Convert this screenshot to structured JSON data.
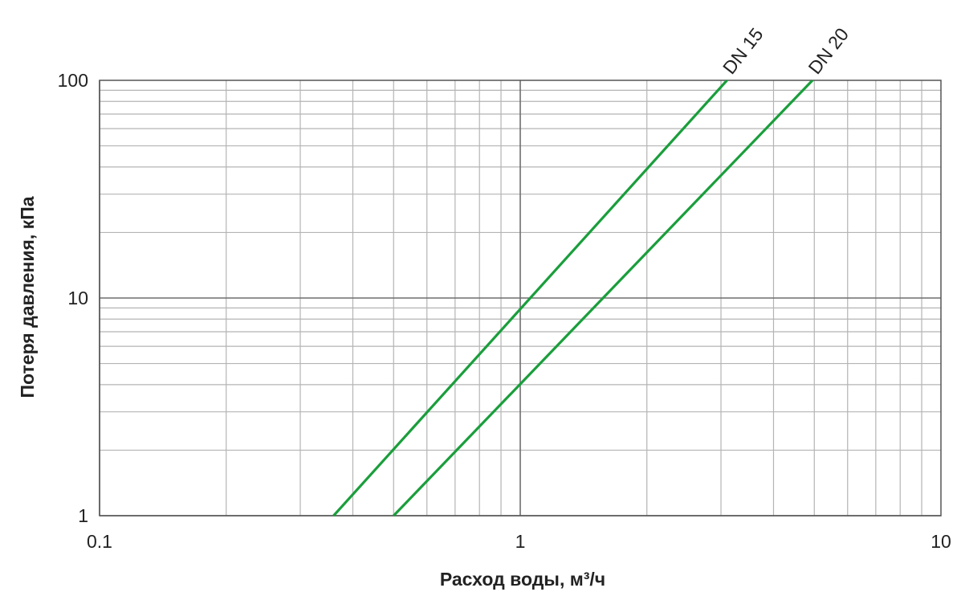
{
  "chart_data": {
    "type": "line",
    "x_scale": "log",
    "y_scale": "log",
    "xlim": [
      0.1,
      10
    ],
    "ylim": [
      1,
      100
    ],
    "xlabel": "Расход воды, м³/ч",
    "ylabel": "Потеря давления, кПа",
    "x_ticks": [
      "0.1",
      "1",
      "10"
    ],
    "y_ticks": [
      "1",
      "10",
      "100"
    ],
    "grid": true,
    "series": [
      {
        "name": "DN 15",
        "color": "#1a9e3c",
        "x": [
          0.36,
          3.1
        ],
        "y": [
          1,
          100
        ]
      },
      {
        "name": "DN 20",
        "color": "#1a9e3c",
        "x": [
          0.5,
          4.95
        ],
        "y": [
          1,
          100
        ]
      }
    ]
  }
}
